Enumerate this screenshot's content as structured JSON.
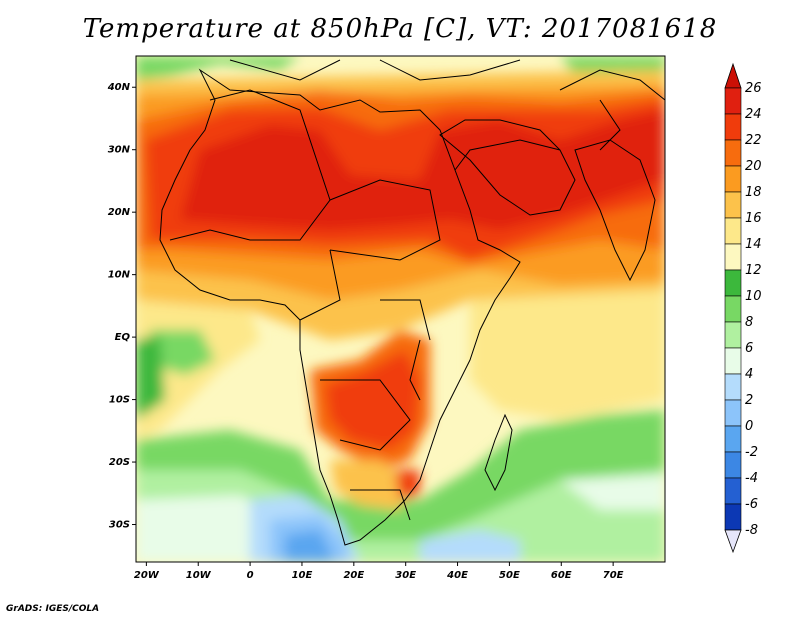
{
  "title": "Temperature at 850hPa [C], VT: 2017081618",
  "credit": "GrADS: IGES/COLA",
  "map": {
    "lon_ticks": [
      "20W",
      "10W",
      "0",
      "10E",
      "20E",
      "30E",
      "40E",
      "50E",
      "60E",
      "70E"
    ],
    "lat_ticks": [
      "40N",
      "30N",
      "20N",
      "10N",
      "EQ",
      "10S",
      "20S",
      "30S"
    ],
    "lon_range": [
      -22,
      80
    ],
    "lat_range": [
      -36,
      45
    ]
  },
  "colorbar": {
    "levels": [
      "26",
      "24",
      "22",
      "20",
      "18",
      "16",
      "14",
      "12",
      "10",
      "8",
      "6",
      "4",
      "2",
      "0",
      "-2",
      "-4",
      "-6",
      "-8"
    ],
    "colors": [
      "#e02010",
      "#f03c0c",
      "#f76c0e",
      "#fb9b20",
      "#fcc24b",
      "#fde88a",
      "#fdf8c0",
      "#3cb83c",
      "#78d864",
      "#b0f0a0",
      "#e8fce8",
      "#b4dcfc",
      "#8cc4fa",
      "#5aa6f0",
      "#3c87e4",
      "#2460d2",
      "#0c38b4",
      "#101c80"
    ],
    "overflow_top": "#cc1006",
    "overflow_bottom": "#e6e6fa"
  }
}
